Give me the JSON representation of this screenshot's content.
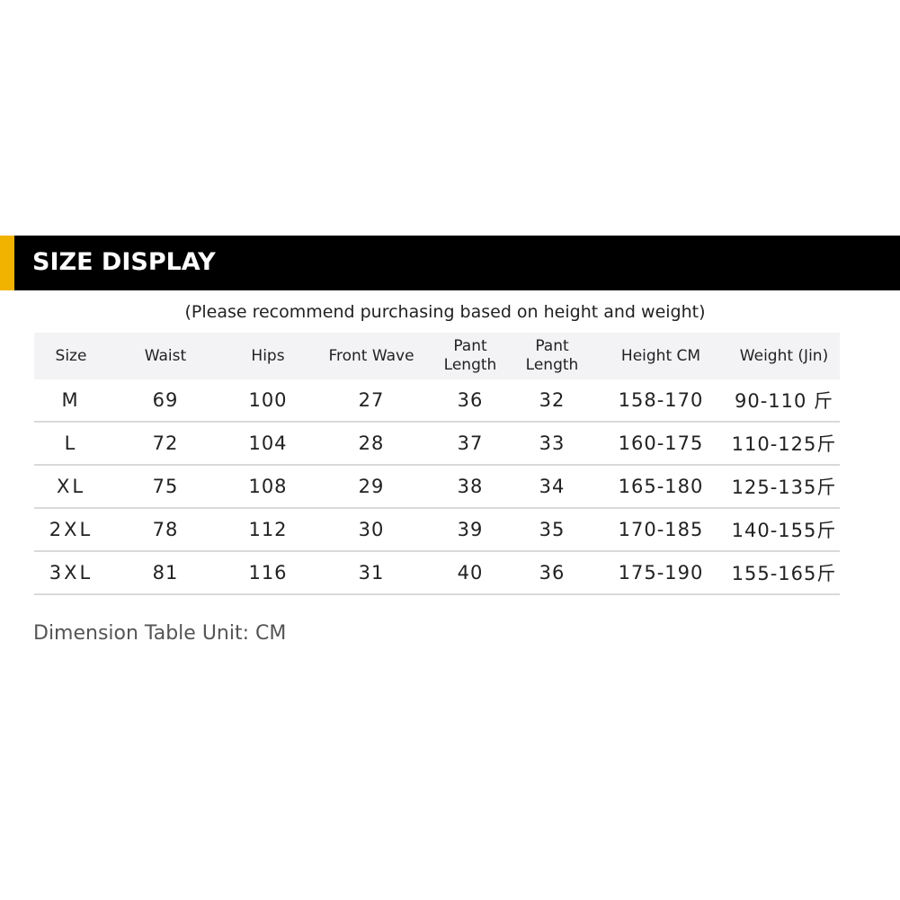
{
  "banner": {
    "title": "SIZE DISPLAY",
    "accent_color": "#f2b200",
    "background_color": "#000000"
  },
  "subtitle": "(Please recommend purchasing based on height and weight)",
  "table": {
    "headers": [
      "Size",
      "Waist",
      "Hips",
      "Front Wave",
      "Pant\nLength",
      "Pant\nLength",
      "Height CM",
      "Weight (Jin)"
    ],
    "rows": [
      [
        "M",
        "69",
        "100",
        "27",
        "36",
        "32",
        "158-170",
        "90-110 斤"
      ],
      [
        "L",
        "72",
        "104",
        "28",
        "37",
        "33",
        "160-175",
        "110-125斤"
      ],
      [
        "XL",
        "75",
        "108",
        "29",
        "38",
        "34",
        "165-180",
        "125-135斤"
      ],
      [
        "2XL",
        "78",
        "112",
        "30",
        "39",
        "35",
        "170-185",
        "140-155斤"
      ],
      [
        "3XL",
        "81",
        "116",
        "31",
        "40",
        "36",
        "175-190",
        "155-165斤"
      ]
    ]
  },
  "footnote": "Dimension Table Unit: CM"
}
